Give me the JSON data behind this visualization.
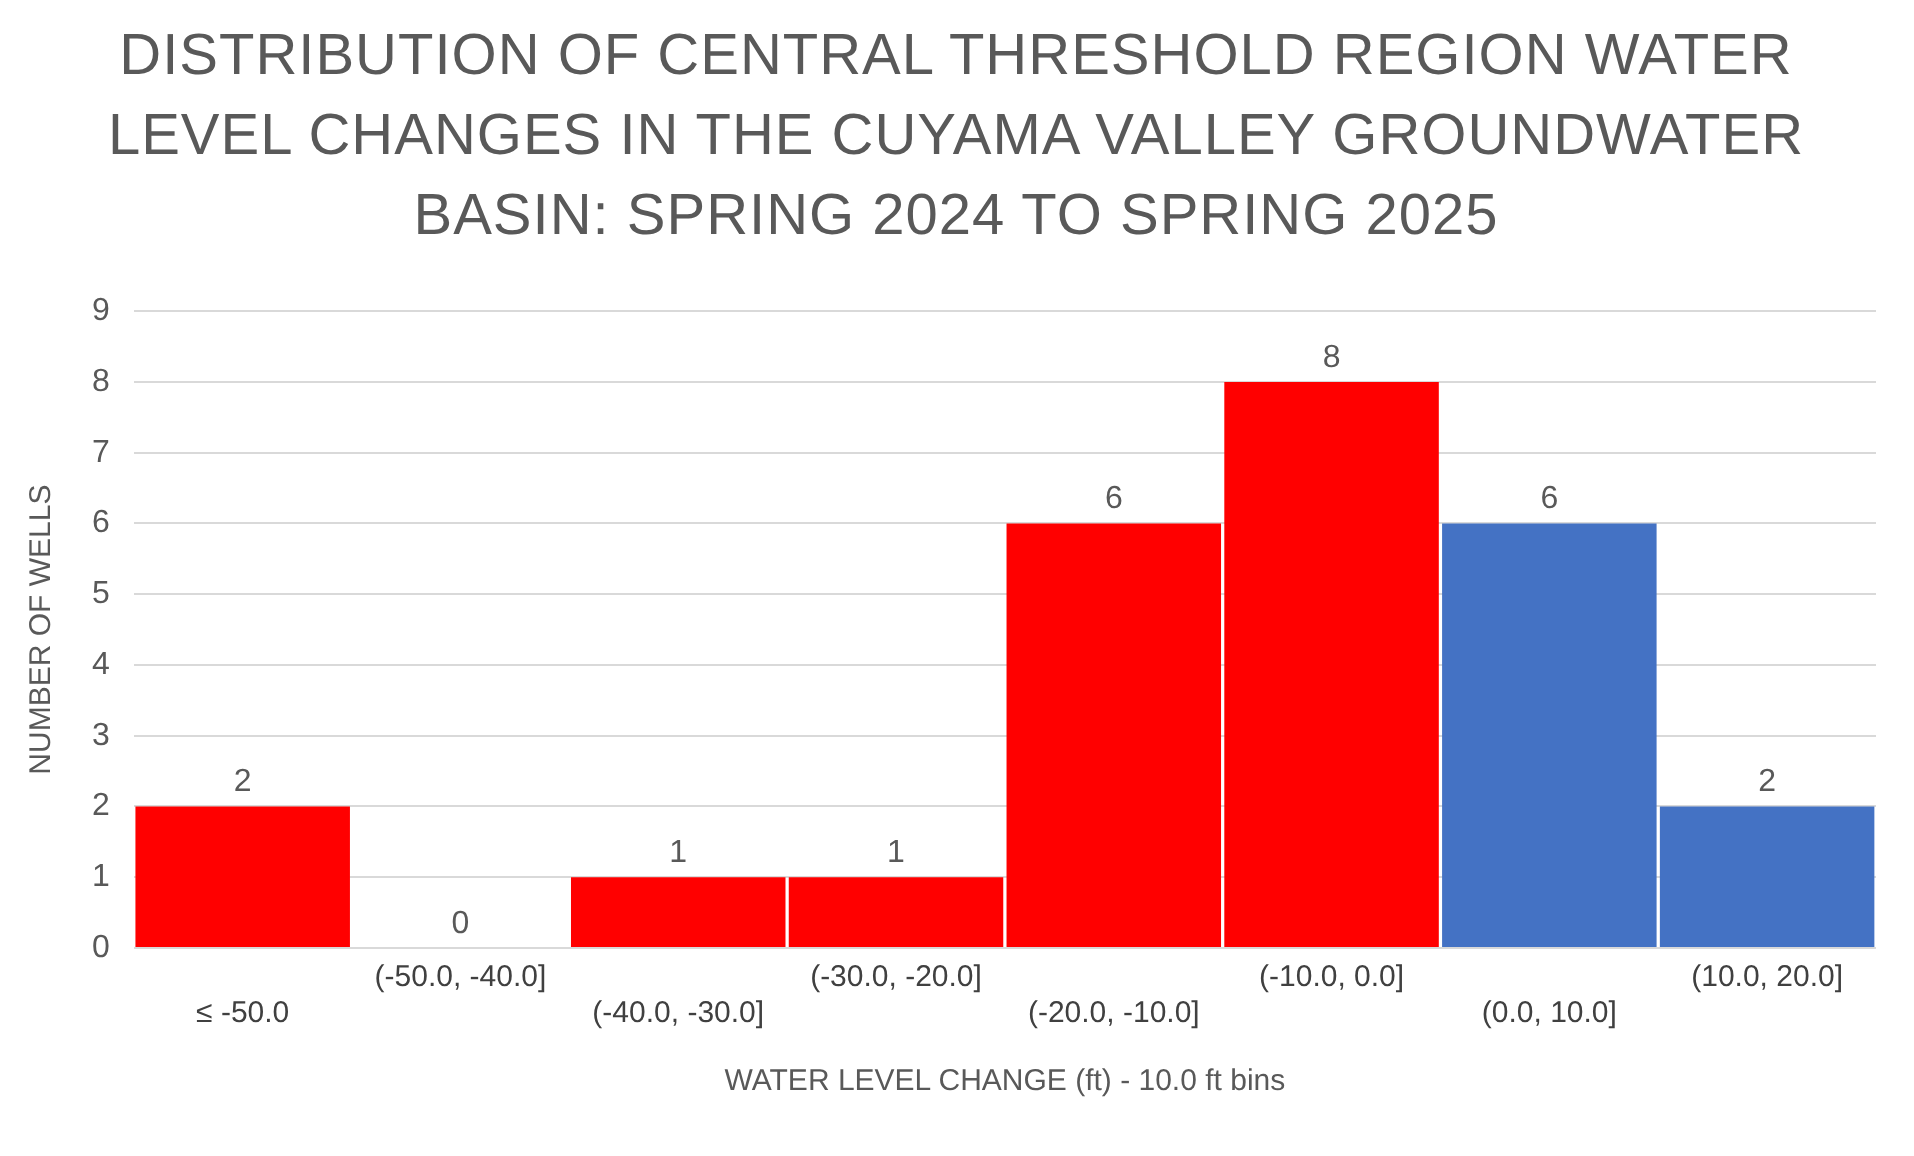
{
  "chart_data": {
    "type": "bar",
    "title": "DISTRIBUTION OF CENTRAL THRESHOLD REGION WATER LEVEL CHANGES IN THE CUYAMA VALLEY GROUNDWATER BASIN: SPRING 2024 TO SPRING 2025",
    "xlabel": "WATER LEVEL CHANGE (ft) - 10.0 ft bins",
    "ylabel": "NUMBER OF WELLS",
    "categories": [
      "≤ -50.0",
      "(-50.0, -40.0]",
      "(-40.0, -30.0]",
      "(-30.0, -20.0]",
      "(-20.0, -10.0]",
      "(-10.0, 0.0]",
      "(0.0, 10.0]",
      "(10.0, 20.0]"
    ],
    "values": [
      2,
      0,
      1,
      1,
      6,
      8,
      6,
      2
    ],
    "colors": [
      "#ff0000",
      "#ff0000",
      "#ff0000",
      "#ff0000",
      "#ff0000",
      "#ff0000",
      "#4472c4",
      "#4472c4"
    ],
    "ylim": [
      0,
      9
    ],
    "yticks": [
      0,
      1,
      2,
      3,
      4,
      5,
      6,
      7,
      8,
      9
    ],
    "grid": "y",
    "data_labels": true,
    "legend": false
  }
}
